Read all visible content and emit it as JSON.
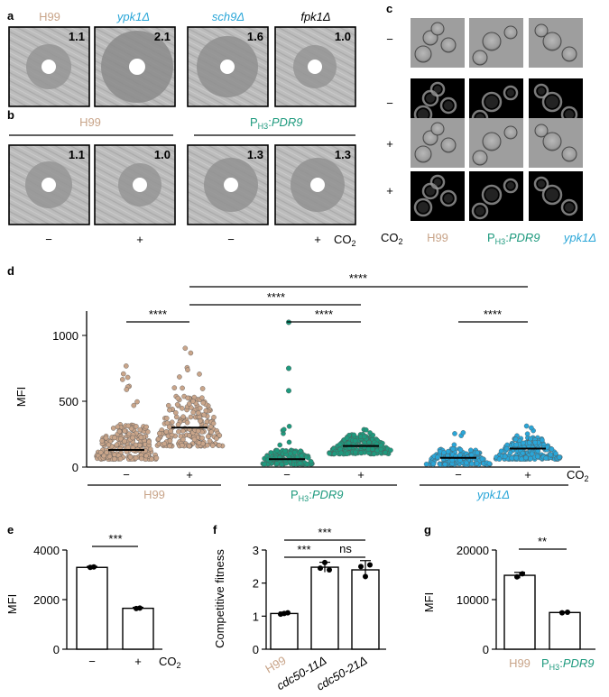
{
  "colors": {
    "h99": "#c9a58a",
    "pdr9": "#1e9a7e",
    "ypk1": "#2aa6d8",
    "black": "#000000",
    "disk_bg": "#b9b9b9",
    "halo": "#8e8e8e"
  },
  "panel_a": {
    "letter": "a",
    "plates": [
      {
        "strain": "H99",
        "ratio": "1.1"
      },
      {
        "strain": "ypk1Δ",
        "ratio": "2.1"
      },
      {
        "strain": "sch9Δ",
        "ratio": "1.6"
      },
      {
        "strain": "fpk1Δ",
        "ratio": "1.0"
      }
    ]
  },
  "panel_b": {
    "letter": "b",
    "group_labels": [
      "H99",
      "P",
      "H3",
      ":",
      "PDR9"
    ],
    "plates": [
      {
        "ratio": "1.1",
        "co2": "−"
      },
      {
        "ratio": "1.0",
        "co2": "+"
      },
      {
        "ratio": "1.3",
        "co2": "−"
      },
      {
        "ratio": "1.3",
        "co2": "+"
      }
    ],
    "co2_label": "CO",
    "co2_sub": "2"
  },
  "panel_c": {
    "letter": "c",
    "row_signs": [
      "−",
      "−",
      "+",
      "+"
    ],
    "co2_label": "CO",
    "co2_sub": "2",
    "col_labels": [
      "H99",
      "P",
      "H3",
      ":",
      "PDR9",
      "ypk1Δ"
    ]
  },
  "panel_d": {
    "letter": "d",
    "ylabel": "MFI",
    "yticks": [
      "0",
      "500",
      "1000"
    ],
    "groups": [
      {
        "name": "H99",
        "medians": [
          130,
          300
        ]
      },
      {
        "name": "PH3:PDR9",
        "medians": [
          60,
          160
        ]
      },
      {
        "name": "ypk1Δ",
        "medians": [
          70,
          140
        ]
      }
    ],
    "sig": [
      "****",
      "****",
      "****",
      "****",
      "****"
    ],
    "co2_signs": [
      "−",
      "+",
      "−",
      "+",
      "−",
      "+"
    ],
    "co2_label": "CO",
    "co2_sub": "2"
  },
  "chart_data": [
    {
      "type": "bar",
      "panel": "e",
      "categories": [
        "−",
        "+"
      ],
      "values": [
        3300,
        1650
      ],
      "ylabel": "MFI",
      "yticks": [
        "0",
        "2000",
        "4000"
      ],
      "ylim": [
        0,
        4000
      ],
      "significance": "***",
      "xlabel_suffix": "CO",
      "xlabel_sub": "2"
    },
    {
      "type": "bar",
      "panel": "f",
      "categories": [
        "H99",
        "cdc50-11Δ",
        "cdc50-21Δ"
      ],
      "values": [
        1.08,
        2.48,
        2.4
      ],
      "ylabel": "Competitive fitness",
      "yticks": [
        "0",
        "1",
        "2",
        "3"
      ],
      "ylim": [
        0,
        3
      ],
      "significance": [
        "***",
        "***",
        "ns"
      ]
    },
    {
      "type": "bar",
      "panel": "g",
      "categories": [
        "H99",
        "PH3:PDR9"
      ],
      "values": [
        14900,
        7400
      ],
      "ylabel": "MFI",
      "yticks": [
        "0",
        "10000",
        "20000"
      ],
      "ylim": [
        0,
        20000
      ],
      "significance": "**"
    }
  ]
}
